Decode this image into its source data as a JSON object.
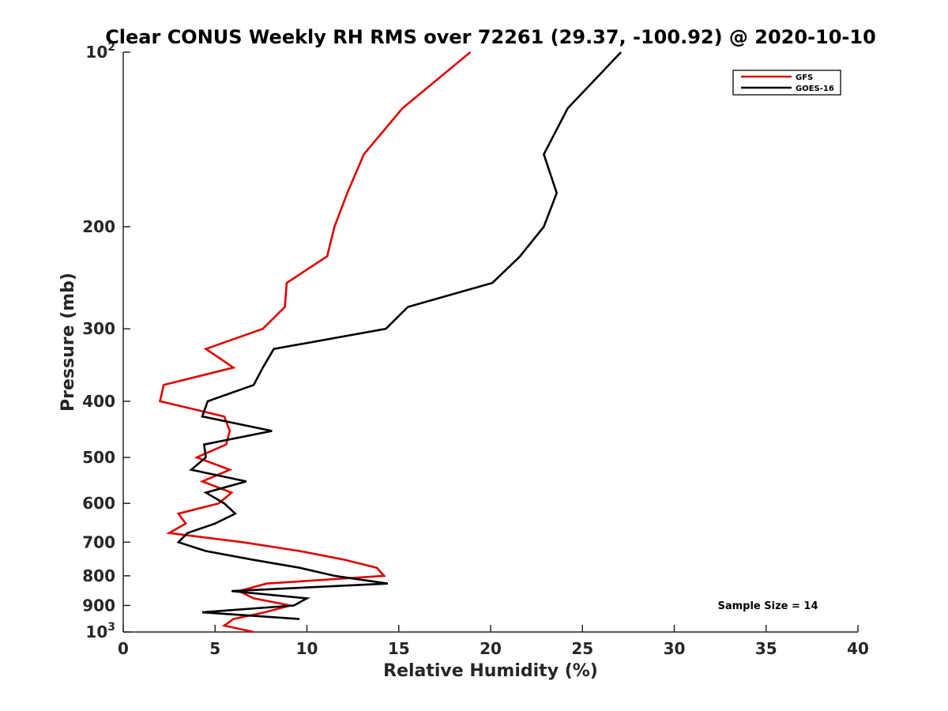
{
  "chart_data": {
    "type": "line",
    "title": "Clear CONUS Weekly RH RMS over 72261 (29.37, -100.92) @ 2020-10-10",
    "xlabel": "Relative Humidity (%)",
    "ylabel": "Pressure (mb)",
    "xlim": [
      0,
      40
    ],
    "ylim": [
      100,
      1000
    ],
    "y_scale": "log",
    "y_reversed": true,
    "grid": false,
    "legend_position": "top-right",
    "x_ticks": [
      0,
      5,
      10,
      15,
      20,
      25,
      30,
      35,
      40
    ],
    "y_ticks": [
      {
        "value": 100,
        "base": "10",
        "exp": "2"
      },
      {
        "value": 200,
        "label": "200"
      },
      {
        "value": 300,
        "label": "300"
      },
      {
        "value": 400,
        "label": "400"
      },
      {
        "value": 500,
        "label": "500"
      },
      {
        "value": 600,
        "label": "600"
      },
      {
        "value": 700,
        "label": "700"
      },
      {
        "value": 800,
        "label": "800"
      },
      {
        "value": 900,
        "label": "900"
      },
      {
        "value": 1000,
        "base": "10",
        "exp": "3"
      }
    ],
    "series": [
      {
        "name": "GFS",
        "color": "#e00000",
        "points": [
          [
            18.9,
            100
          ],
          [
            15.2,
            125
          ],
          [
            13.1,
            150
          ],
          [
            12.2,
            175
          ],
          [
            11.5,
            200
          ],
          [
            11.1,
            225
          ],
          [
            8.9,
            250
          ],
          [
            8.8,
            275
          ],
          [
            7.6,
            300
          ],
          [
            4.5,
            325
          ],
          [
            6.0,
            350
          ],
          [
            2.2,
            375
          ],
          [
            2.0,
            400
          ],
          [
            5.5,
            425
          ],
          [
            5.8,
            450
          ],
          [
            5.6,
            475
          ],
          [
            4.0,
            500
          ],
          [
            5.8,
            525
          ],
          [
            4.3,
            550
          ],
          [
            5.9,
            575
          ],
          [
            5.2,
            600
          ],
          [
            3.0,
            625
          ],
          [
            3.4,
            650
          ],
          [
            2.5,
            675
          ],
          [
            6.5,
            700
          ],
          [
            9.6,
            725
          ],
          [
            12.0,
            750
          ],
          [
            13.8,
            775
          ],
          [
            14.2,
            800
          ],
          [
            7.8,
            825
          ],
          [
            6.3,
            850
          ],
          [
            7.1,
            875
          ],
          [
            9.1,
            900
          ],
          [
            7.7,
            925
          ],
          [
            6.0,
            950
          ],
          [
            5.5,
            975
          ],
          [
            7.1,
            1000
          ]
        ]
      },
      {
        "name": "GOES-16",
        "color": "#000000",
        "points": [
          [
            27.1,
            100
          ],
          [
            24.2,
            125
          ],
          [
            22.9,
            150
          ],
          [
            23.6,
            175
          ],
          [
            22.9,
            200
          ],
          [
            21.6,
            225
          ],
          [
            20.1,
            250
          ],
          [
            15.5,
            275
          ],
          [
            14.3,
            300
          ],
          [
            8.2,
            325
          ],
          [
            7.6,
            350
          ],
          [
            7.1,
            375
          ],
          [
            4.6,
            400
          ],
          [
            4.3,
            425
          ],
          [
            8.1,
            450
          ],
          [
            4.4,
            475
          ],
          [
            4.5,
            500
          ],
          [
            3.7,
            525
          ],
          [
            6.7,
            550
          ],
          [
            4.5,
            575
          ],
          [
            5.5,
            600
          ],
          [
            6.1,
            625
          ],
          [
            5.0,
            650
          ],
          [
            3.5,
            675
          ],
          [
            3.0,
            700
          ],
          [
            4.5,
            725
          ],
          [
            7.0,
            750
          ],
          [
            9.6,
            775
          ],
          [
            11.5,
            800
          ],
          [
            14.4,
            825
          ],
          [
            5.9,
            850
          ],
          [
            10.0,
            875
          ],
          [
            9.3,
            900
          ],
          [
            4.3,
            925
          ],
          [
            9.6,
            950
          ]
        ]
      }
    ],
    "annotation": "Sample Size = 14"
  }
}
